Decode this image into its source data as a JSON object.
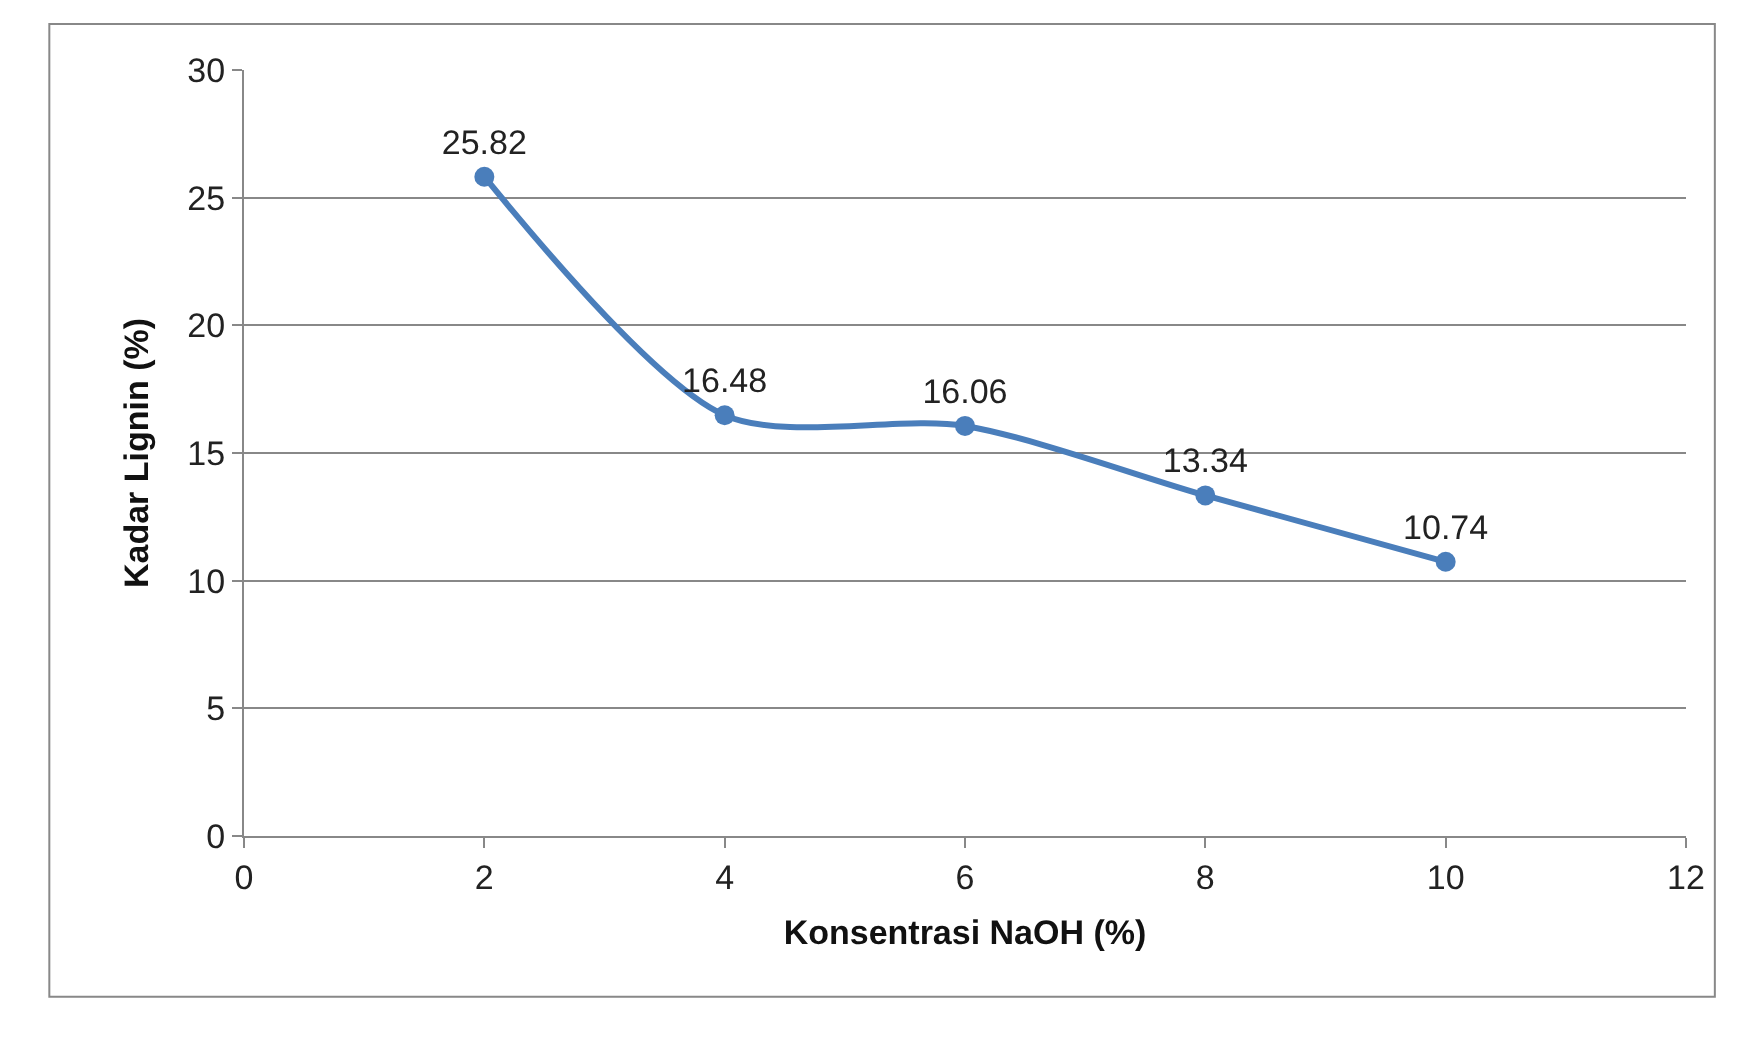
{
  "chart_data": {
    "type": "line",
    "xlabel": "Konsentrasi NaOH (%)",
    "ylabel": "Kadar Lignin (%)",
    "x": [
      2,
      4,
      6,
      8,
      10
    ],
    "series": [
      {
        "color": "#4a7ebb",
        "values": [
          25.82,
          16.48,
          16.06,
          13.34,
          10.74
        ]
      }
    ],
    "xlim": [
      0,
      12
    ],
    "xticks": [
      0,
      2,
      4,
      6,
      8,
      10,
      12
    ],
    "ylim": [
      0,
      30
    ],
    "yticks": [
      0,
      5,
      10,
      15,
      20,
      25,
      30
    ],
    "grid": "y",
    "marker": "circle",
    "line_style": "solid",
    "data_labels": true
  }
}
